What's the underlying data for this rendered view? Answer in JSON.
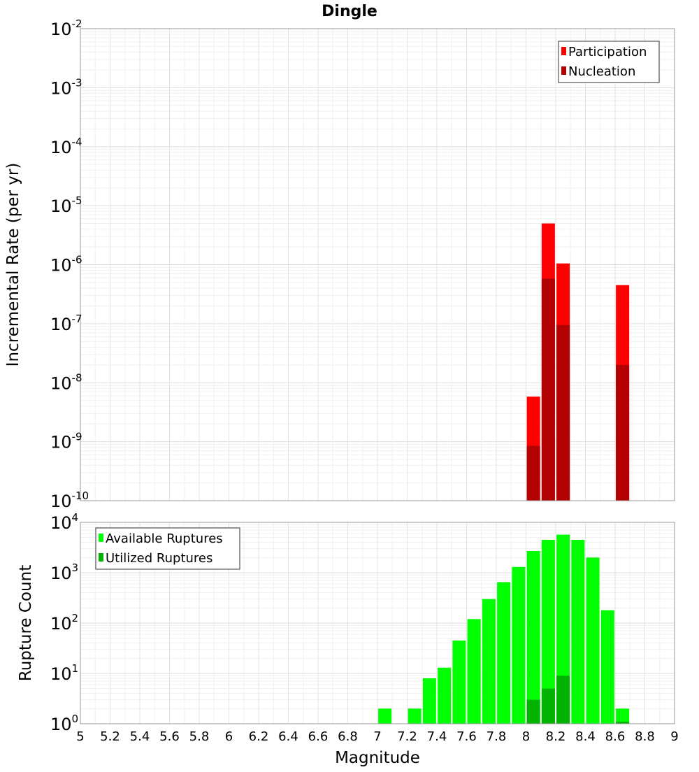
{
  "chart_data": [
    {
      "type": "bar",
      "title": "Dingle",
      "xlabel": "",
      "ylabel": "Incremental Rate (per yr)",
      "yscale": "log",
      "ylim": [
        1e-10,
        0.01
      ],
      "xlim": [
        5,
        9
      ],
      "ytick_labels": [
        "10^-10",
        "10^-9",
        "10^-8",
        "10^-7",
        "10^-6",
        "10^-5",
        "10^-4",
        "10^-3",
        "10^-2"
      ],
      "grid": true,
      "legend_position": "top-right",
      "series": [
        {
          "name": "Participation",
          "color": "#ff0000",
          "points": [
            [
              8.05,
              5.8e-09
            ],
            [
              8.15,
              5e-06
            ],
            [
              8.25,
              1.05e-06
            ],
            [
              8.65,
              4.5e-07
            ]
          ]
        },
        {
          "name": "Nucleation",
          "color": "#b30000",
          "points": [
            [
              8.05,
              8.5e-10
            ],
            [
              8.15,
              5.8e-07
            ],
            [
              8.25,
              9.5e-08
            ],
            [
              8.65,
              2e-08
            ]
          ]
        }
      ]
    },
    {
      "type": "bar",
      "title": "",
      "xlabel": "Magnitude",
      "ylabel": "Rupture Count",
      "yscale": "log",
      "ylim": [
        1,
        10000
      ],
      "xlim": [
        5,
        9
      ],
      "xtick_labels": [
        "5",
        "5.2",
        "5.4",
        "5.6",
        "5.8",
        "6",
        "6.2",
        "6.4",
        "6.6",
        "6.8",
        "7",
        "7.2",
        "7.4",
        "7.6",
        "7.8",
        "8",
        "8.2",
        "8.4",
        "8.6",
        "8.8",
        "9"
      ],
      "ytick_labels": [
        "10^0",
        "10^1",
        "10^2",
        "10^3",
        "10^4"
      ],
      "grid": true,
      "legend_position": "top-left",
      "series": [
        {
          "name": "Available Ruptures",
          "color": "#00ff00",
          "points": [
            [
              7.05,
              2
            ],
            [
              7.25,
              2
            ],
            [
              7.35,
              8
            ],
            [
              7.45,
              13
            ],
            [
              7.55,
              45
            ],
            [
              7.65,
              120
            ],
            [
              7.75,
              300
            ],
            [
              7.85,
              650
            ],
            [
              7.95,
              1300
            ],
            [
              8.05,
              2700
            ],
            [
              8.15,
              4500
            ],
            [
              8.25,
              5700
            ],
            [
              8.35,
              4500
            ],
            [
              8.45,
              2000
            ],
            [
              8.55,
              180
            ],
            [
              8.65,
              2
            ]
          ]
        },
        {
          "name": "Utilized Ruptures",
          "color": "#00b300",
          "points": [
            [
              8.05,
              3
            ],
            [
              8.15,
              5
            ],
            [
              8.25,
              9
            ],
            [
              8.65,
              1.1
            ]
          ]
        }
      ]
    }
  ]
}
